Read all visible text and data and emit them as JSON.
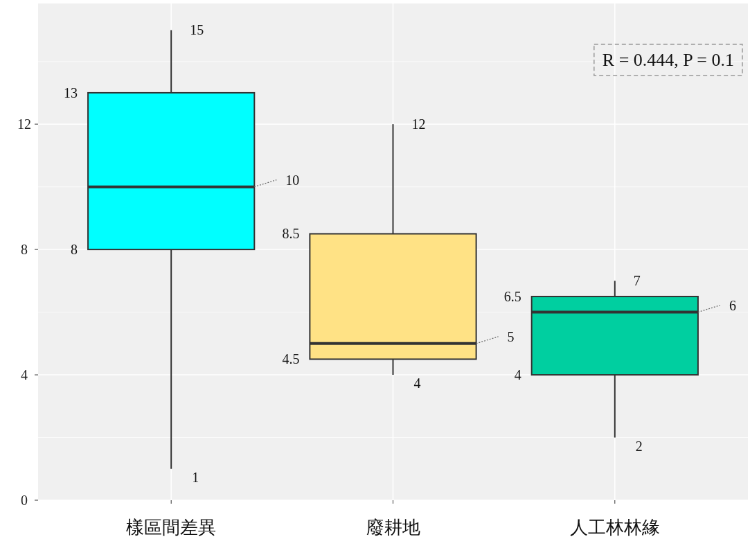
{
  "chart_data": {
    "type": "box",
    "categories": [
      "樣區間差異",
      "廢耕地",
      "人工林林緣"
    ],
    "colors": [
      "#00ffff",
      "#ffe285",
      "#00cfa0"
    ],
    "boxes": [
      {
        "low": 1,
        "q1": 8,
        "median": 10,
        "q3": 13,
        "high": 15
      },
      {
        "low": 4,
        "q1": 4.5,
        "median": 5,
        "q3": 8.5,
        "high": 12
      },
      {
        "low": 2,
        "q1": 4,
        "median": 6,
        "q3": 6.5,
        "high": 7
      }
    ],
    "ylim": [
      0,
      15.85
    ],
    "yticks": [
      0,
      4,
      8,
      12
    ],
    "grid": true,
    "data_labels": true,
    "annotations": [
      "R = 0.444, P = 0.1",
      "15",
      "13",
      "10",
      "8",
      "1",
      "12",
      "8.5",
      "5",
      "4.5",
      "4",
      "7",
      "6.5",
      "6",
      "4",
      "2"
    ]
  }
}
